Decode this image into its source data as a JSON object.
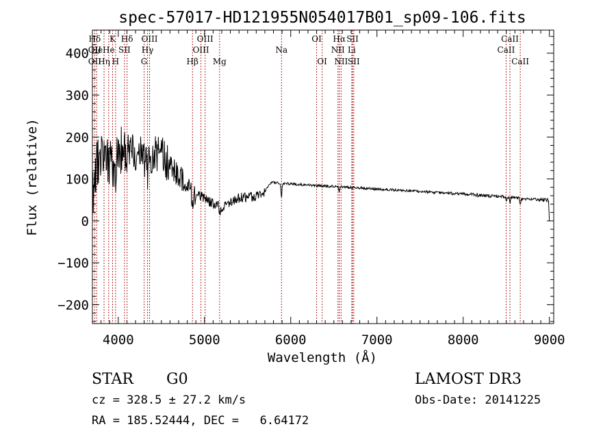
{
  "chart_data": {
    "type": "line",
    "title": "spec-57017-HD121955N054017B01_sp09-106.fits",
    "xlabel": "Wavelength (Å)",
    "ylabel": "Flux (relative)",
    "xlim": [
      3700,
      9050
    ],
    "ylim": [
      -245,
      455
    ],
    "x_ticks": [
      4000,
      5000,
      6000,
      7000,
      8000,
      9000
    ],
    "y_ticks": [
      -200,
      -100,
      0,
      100,
      200,
      300,
      400
    ],
    "grid": false,
    "spectrum_knots": [
      [
        3700,
        50
      ],
      [
        3750,
        140
      ],
      [
        3800,
        160
      ],
      [
        3850,
        160
      ],
      [
        3900,
        150
      ],
      [
        3950,
        140
      ],
      [
        4000,
        160
      ],
      [
        4050,
        180
      ],
      [
        4100,
        175
      ],
      [
        4150,
        170
      ],
      [
        4200,
        165
      ],
      [
        4250,
        160
      ],
      [
        4300,
        145
      ],
      [
        4350,
        150
      ],
      [
        4400,
        155
      ],
      [
        4450,
        160
      ],
      [
        4500,
        160
      ],
      [
        4550,
        140
      ],
      [
        4600,
        130
      ],
      [
        4650,
        120
      ],
      [
        4700,
        110
      ],
      [
        4750,
        95
      ],
      [
        4800,
        85
      ],
      [
        4850,
        75
      ],
      [
        4900,
        65
      ],
      [
        5000,
        55
      ],
      [
        5100,
        40
      ],
      [
        5150,
        38
      ],
      [
        5200,
        30
      ],
      [
        5300,
        45
      ],
      [
        5400,
        55
      ],
      [
        5500,
        55
      ],
      [
        5600,
        60
      ],
      [
        5700,
        70
      ],
      [
        5760,
        88
      ],
      [
        5800,
        92
      ],
      [
        6000,
        88
      ],
      [
        6500,
        82
      ],
      [
        7000,
        76
      ],
      [
        7500,
        70
      ],
      [
        8000,
        64
      ],
      [
        8500,
        57
      ],
      [
        8800,
        52
      ],
      [
        9000,
        50
      ]
    ],
    "absorption_dips": [
      [
        3934,
        -60
      ],
      [
        3969,
        -55
      ],
      [
        3889,
        -30
      ],
      [
        4102,
        -60
      ],
      [
        4340,
        -40
      ],
      [
        4861,
        -35
      ],
      [
        5175,
        -20
      ],
      [
        5892,
        -35
      ],
      [
        6563,
        -10
      ],
      [
        8498,
        -10
      ],
      [
        8542,
        -15
      ],
      [
        8662,
        -15
      ]
    ],
    "line_markers": [
      {
        "label": "Hδ",
        "x": 3727,
        "row": 1
      },
      {
        "label": "OII",
        "x": 3727,
        "row": 2
      },
      {
        "label": "OII",
        "x": 3727,
        "row": 3
      },
      {
        "label": "He",
        "x": 3750,
        "row": 2
      },
      {
        "label": "Hη",
        "x": 3835,
        "row": 3
      },
      {
        "label": "K",
        "x": 3934,
        "row": 1
      },
      {
        "label": "He",
        "x": 3889,
        "row": 2
      },
      {
        "label": "SII",
        "x": 4072,
        "row": 2
      },
      {
        "label": "H",
        "x": 3969,
        "row": 3
      },
      {
        "label": "Hδ",
        "x": 4102,
        "row": 1
      },
      {
        "label": "OIII",
        "x": 4363,
        "row": 1
      },
      {
        "label": "Hγ",
        "x": 4340,
        "row": 2
      },
      {
        "label": "G",
        "x": 4300,
        "row": 3
      },
      {
        "label": "OIII",
        "x": 5007,
        "row": 1
      },
      {
        "label": "OIII",
        "x": 4959,
        "row": 2
      },
      {
        "label": "Hβ",
        "x": 4861,
        "row": 3
      },
      {
        "label": "Mg",
        "x": 5175,
        "row": 3
      },
      {
        "label": "Na",
        "x": 5893,
        "row": 2
      },
      {
        "label": "OI",
        "x": 6300,
        "row": 1
      },
      {
        "label": "OI",
        "x": 6364,
        "row": 3
      },
      {
        "label": "Hα",
        "x": 6563,
        "row": 1
      },
      {
        "label": "SII",
        "x": 6717,
        "row": 1
      },
      {
        "label": "NII",
        "x": 6548,
        "row": 2
      },
      {
        "label": "Li",
        "x": 6708,
        "row": 2
      },
      {
        "label": "NII",
        "x": 6584,
        "row": 3
      },
      {
        "label": "SII",
        "x": 6731,
        "row": 3
      },
      {
        "label": "CaII",
        "x": 8542,
        "row": 1
      },
      {
        "label": "CaII",
        "x": 8498,
        "row": 2
      },
      {
        "label": "CaII",
        "x": 8662,
        "row": 3
      }
    ],
    "marker_lines": [
      3727,
      3750,
      3835,
      3889,
      3934,
      3969,
      4072,
      4102,
      4300,
      4340,
      4363,
      4861,
      4959,
      5007,
      5175,
      5893,
      6300,
      6364,
      6548,
      6563,
      6584,
      6708,
      6717,
      6731,
      8498,
      8542,
      8662
    ],
    "info": {
      "class": "STAR",
      "subclass": "G0",
      "survey": "LAMOST DR3",
      "cz": "cz = 328.5 ± 27.2 km/s",
      "obs_date": "Obs-Date: 20141225",
      "coords": "RA = 185.52444, DEC =   6.64172"
    },
    "line_color": "#000000",
    "marker_color": "#b22222"
  }
}
